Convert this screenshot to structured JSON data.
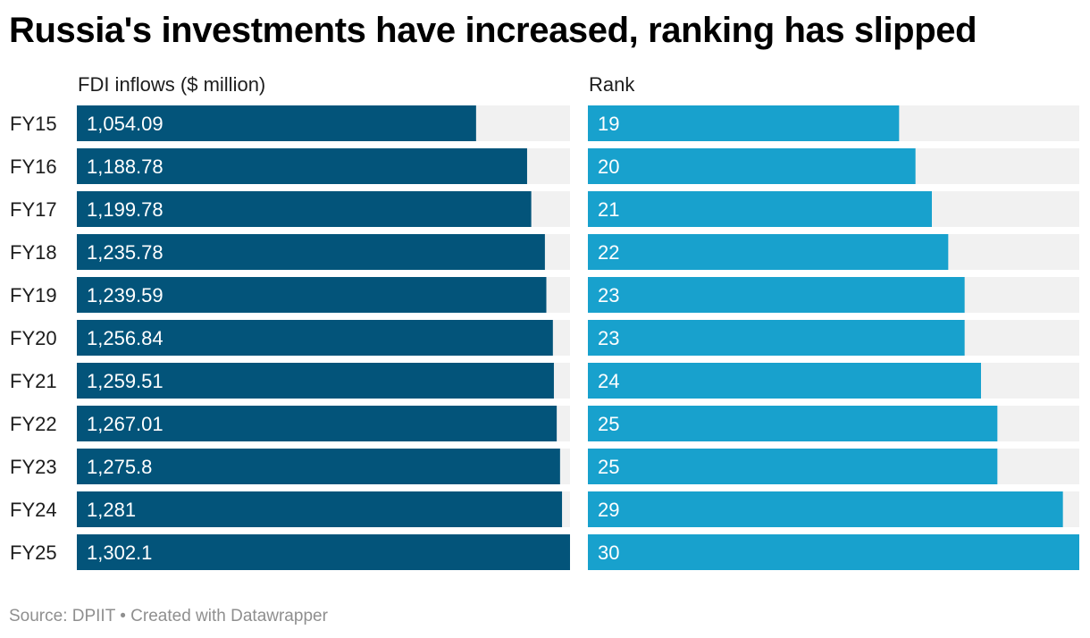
{
  "title": "Russia's investments have increased, ranking has slipped",
  "source": "Source: DPIIT • Created with Datawrapper",
  "colors": {
    "fdi_bar": "#03547a",
    "rank_bar": "#18a1cd",
    "track": "#f1f1f1"
  },
  "chart_data": {
    "type": "bar",
    "orientation": "horizontal",
    "categories": [
      "FY15",
      "FY16",
      "FY17",
      "FY18",
      "FY19",
      "FY20",
      "FY21",
      "FY22",
      "FY23",
      "FY24",
      "FY25"
    ],
    "series": [
      {
        "name": "FDI inflows ($ million)",
        "values": [
          1054.09,
          1188.78,
          1199.78,
          1235.78,
          1239.59,
          1256.84,
          1259.51,
          1267.01,
          1275.8,
          1281,
          1302.1
        ],
        "labels": [
          "1,054.09",
          "1,188.78",
          "1,199.78",
          "1,235.78",
          "1,239.59",
          "1,256.84",
          "1,259.51",
          "1,267.01",
          "1,275.8",
          "1,281",
          "1,302.1"
        ],
        "xlim": [
          0,
          1302.1
        ]
      },
      {
        "name": "Rank",
        "values": [
          19,
          20,
          21,
          22,
          23,
          23,
          24,
          25,
          25,
          29,
          30
        ],
        "labels": [
          "19",
          "20",
          "21",
          "22",
          "23",
          "23",
          "24",
          "25",
          "25",
          "29",
          "30"
        ],
        "xlim": [
          0,
          30
        ]
      }
    ],
    "grid": false,
    "legend": "column headers"
  }
}
